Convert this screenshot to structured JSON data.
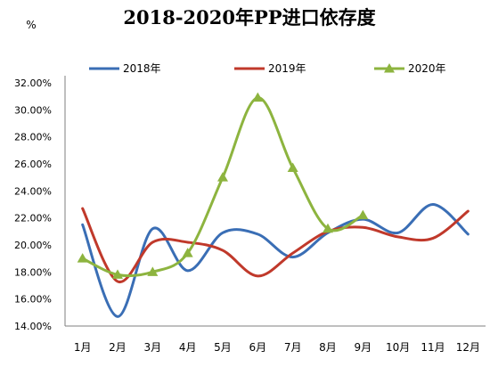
{
  "chart_data": {
    "type": "line",
    "title": "2018-2020年PP进口依存度",
    "unit_label": "%",
    "categories": [
      "1月",
      "2月",
      "3月",
      "4月",
      "5月",
      "6月",
      "7月",
      "8月",
      "9月",
      "10月",
      "11月",
      "12月"
    ],
    "ylim": [
      14,
      32
    ],
    "yticks": [
      "14.00%",
      "16.00%",
      "18.00%",
      "20.00%",
      "22.00%",
      "24.00%",
      "26.00%",
      "28.00%",
      "30.00%",
      "32.00%"
    ],
    "ytick_values": [
      14,
      16,
      18,
      20,
      22,
      24,
      26,
      28,
      30,
      32
    ],
    "legend_position": "top",
    "grid": false,
    "series": [
      {
        "name": "2018年",
        "color": "#3A6EB5",
        "marker": "none",
        "values": [
          21.5,
          14.7,
          21.2,
          18.1,
          20.9,
          20.8,
          19.1,
          20.9,
          21.9,
          20.9,
          23.0,
          20.8
        ]
      },
      {
        "name": "2019年",
        "color": "#C0392B",
        "marker": "none",
        "values": [
          22.7,
          17.3,
          20.2,
          20.2,
          19.6,
          17.7,
          19.4,
          21.0,
          21.3,
          20.6,
          20.5,
          22.5
        ]
      },
      {
        "name": "2020年",
        "color": "#8DB43F",
        "marker": "triangle",
        "values": [
          19.0,
          17.8,
          18.0,
          19.4,
          25.0,
          30.9,
          25.7,
          21.2,
          22.2,
          null,
          null,
          null
        ]
      }
    ]
  }
}
